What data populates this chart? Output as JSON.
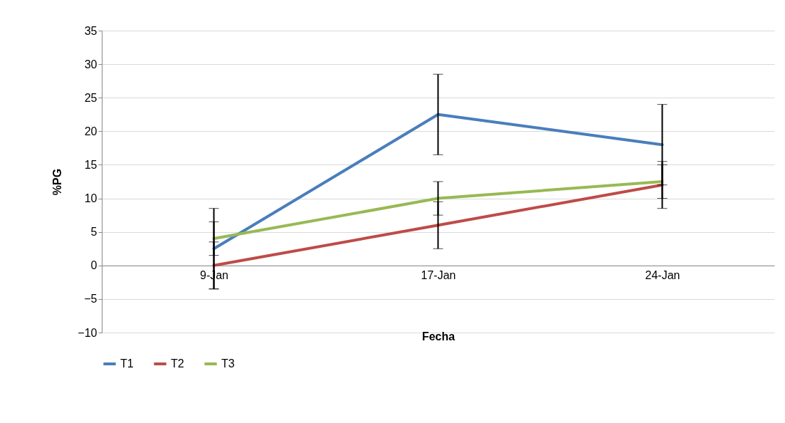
{
  "chart_data": {
    "type": "line",
    "xlabel": "Fecha",
    "ylabel": "%PG",
    "categories": [
      "9-Jan",
      "17-Jan",
      "24-Jan"
    ],
    "series": [
      {
        "name": "T1",
        "color": "#4a7ebb",
        "values": [
          2.5,
          22.5,
          18
        ],
        "errors": [
          6,
          6,
          6
        ]
      },
      {
        "name": "T2",
        "color": "#be4b48",
        "values": [
          0,
          6,
          12
        ],
        "errors": [
          3.5,
          3.5,
          3.5
        ]
      },
      {
        "name": "T3",
        "color": "#98b954",
        "values": [
          4,
          10,
          12.5
        ],
        "errors": [
          2.5,
          2.5,
          2.5
        ]
      }
    ],
    "ylim": [
      -10,
      35
    ],
    "yticks": [
      -10,
      -5,
      0,
      5,
      10,
      15,
      20,
      25,
      30,
      35
    ],
    "grid": "y",
    "legend": "bottom",
    "marker": "none",
    "line_style": "solid"
  }
}
